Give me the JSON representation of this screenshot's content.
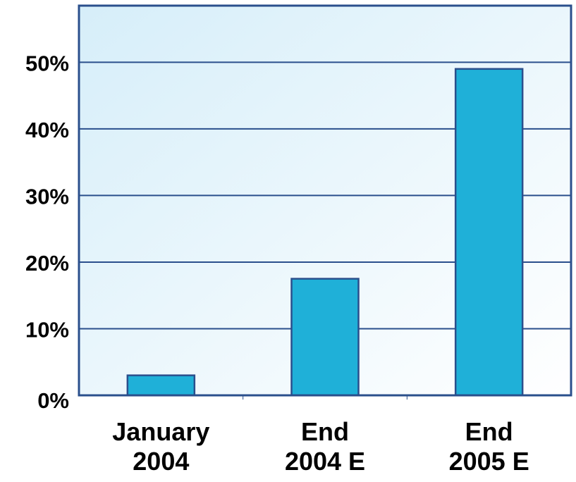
{
  "chart_data": {
    "type": "bar",
    "categories": [
      [
        "January",
        "2004"
      ],
      [
        "End",
        "2004 E"
      ],
      [
        "End",
        "2005 E"
      ]
    ],
    "values": [
      3,
      17.5,
      49
    ],
    "y_ticks": [
      "0%",
      "10%",
      "20%",
      "30%",
      "40%",
      "50%"
    ],
    "y_tick_values": [
      0,
      10,
      20,
      30,
      40,
      50
    ],
    "ylim": [
      0,
      58.5
    ],
    "title": "",
    "xlabel": "",
    "ylabel": "",
    "grid": true,
    "legend": "none",
    "colors": {
      "bar_fill": "#1fb0d8",
      "bar_stroke": "#2a4f8c",
      "frame": "#2a4f8c",
      "grid": "#2a4f8c",
      "background_start": "#d6eef9",
      "background_end": "#ffffff"
    }
  }
}
